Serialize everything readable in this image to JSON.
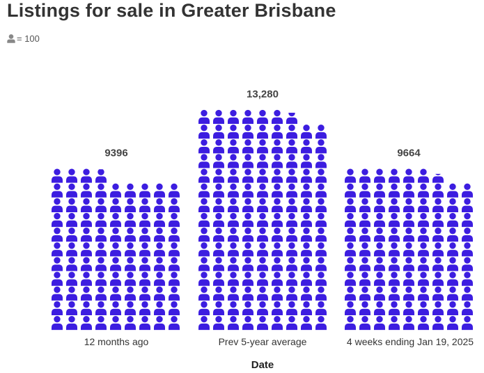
{
  "title": "Listings for sale in Greater Brisbane",
  "legend": {
    "icon": "person-icon",
    "text": "= 100"
  },
  "colors": {
    "icon": "#3c1de0",
    "legend_icon": "#888888"
  },
  "chart_data": {
    "type": "pictogram",
    "title": "Listings for sale in Greater Brisbane",
    "xlabel": "Date",
    "ylabel": "",
    "unit_per_icon": 100,
    "grid": false,
    "categories": [
      "12 months ago",
      "Prev 5-year average",
      "4 weeks ending Jan 19, 2025"
    ],
    "values": [
      9396,
      13280,
      9664
    ],
    "value_labels": [
      "9396",
      "13,280",
      "9664"
    ]
  }
}
